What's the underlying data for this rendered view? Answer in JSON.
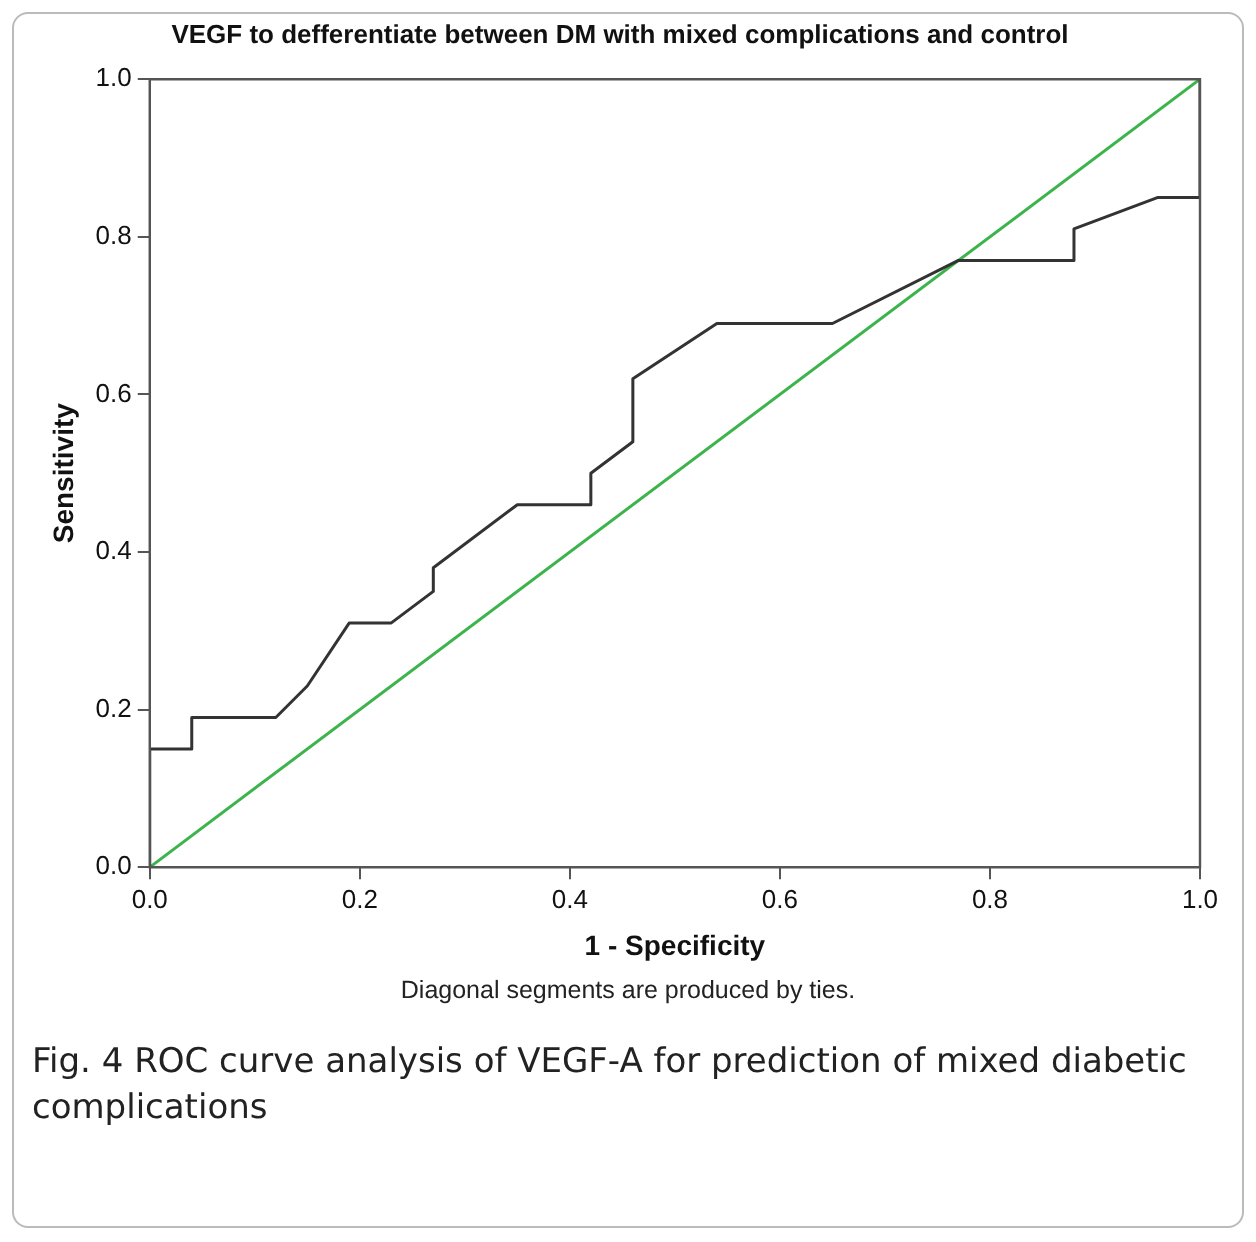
{
  "chart_data": {
    "type": "line",
    "title": "VEGF to defferentiate between DM with mixed complications and control",
    "xlabel": "1 - Specificity",
    "ylabel": "Sensitivity",
    "xlim": [
      0,
      1
    ],
    "ylim": [
      0,
      1
    ],
    "xticks": [
      {
        "value": 0,
        "label": "0.0"
      },
      {
        "value": 0.2,
        "label": "0.2"
      },
      {
        "value": 0.4,
        "label": "0.4"
      },
      {
        "value": 0.6,
        "label": "0.6"
      },
      {
        "value": 0.8,
        "label": "0.8"
      },
      {
        "value": 1,
        "label": "1.0"
      }
    ],
    "yticks": [
      {
        "value": 0,
        "label": "0.0"
      },
      {
        "value": 0.2,
        "label": "0.2"
      },
      {
        "value": 0.4,
        "label": "0.4"
      },
      {
        "value": 0.6,
        "label": "0.6"
      },
      {
        "value": 0.8,
        "label": "0.8"
      },
      {
        "value": 1,
        "label": "1.0"
      }
    ],
    "grid": false,
    "legend": false,
    "marker": "none",
    "line_style": "solid",
    "series": [
      {
        "color": "#333333",
        "x": [
          0,
          0,
          0.04,
          0.04,
          0.12,
          0.15,
          0.19,
          0.23,
          0.27,
          0.27,
          0.35,
          0.42,
          0.42,
          0.46,
          0.46,
          0.54,
          0.65,
          0.77,
          0.88,
          0.88,
          0.96,
          1,
          1
        ],
        "values": [
          0,
          0.15,
          0.15,
          0.19,
          0.19,
          0.23,
          0.31,
          0.31,
          0.35,
          0.38,
          0.46,
          0.46,
          0.5,
          0.54,
          0.62,
          0.69,
          0.69,
          0.77,
          0.77,
          0.81,
          0.85,
          0.85,
          1
        ]
      },
      {
        "color": "#3cb44b",
        "x": [
          0,
          1
        ],
        "values": [
          0,
          1
        ]
      }
    ],
    "annotations": [
      "Diagonal segments are produced by ties.",
      "Fig. 4 ROC curve analysis of VEGF-A for prediction of mixed diabetic complications"
    ]
  }
}
